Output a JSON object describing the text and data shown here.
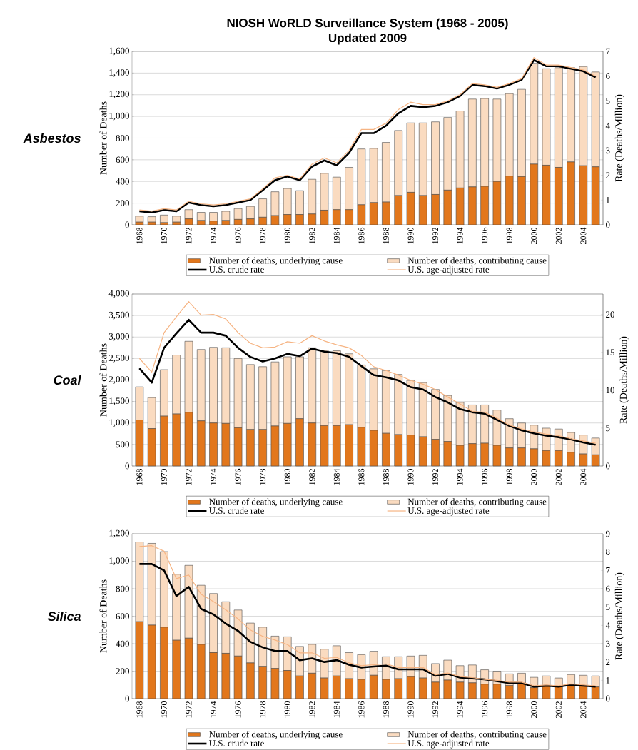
{
  "chart_data": [
    {
      "type": "bar",
      "stacked": true,
      "title": "NIOSH WoRLD Surveillance System (1968 - 2005)",
      "subtitle": "Updated 2009",
      "annotations": [
        "Asbestos"
      ],
      "ylabel": "Number of Deaths",
      "y2label": "Rate (Deaths/Million)",
      "grid": "y",
      "legend": "bottom",
      "categories": [
        "1968",
        null,
        "1970",
        null,
        "1972",
        null,
        "1974",
        null,
        "1976",
        null,
        "1978",
        null,
        "1980",
        null,
        "1982",
        null,
        "1984",
        null,
        "1986",
        null,
        "1988",
        null,
        "1990",
        null,
        "1992",
        null,
        "1994",
        null,
        "1996",
        null,
        "1998",
        null,
        "2000",
        null,
        "2002",
        null,
        "2004",
        null
      ],
      "ylim": [
        0,
        1600
      ],
      "yticks": [
        0,
        200,
        400,
        600,
        800,
        {
          "value": 1000,
          "label": "1,000"
        },
        {
          "value": 1200,
          "label": "1,200"
        },
        {
          "value": 1400,
          "label": "1,400"
        },
        {
          "value": 1600,
          "label": "1,600"
        }
      ],
      "y2lim": [
        0,
        7
      ],
      "y2ticks": [
        0,
        1,
        2,
        3,
        4,
        5,
        6,
        7
      ],
      "series": [
        {
          "name": "Number of deaths, underlying cause",
          "color": "#e2771c",
          "values": [
            25,
            25,
            20,
            25,
            55,
            40,
            35,
            40,
            50,
            55,
            70,
            85,
            95,
            95,
            100,
            135,
            140,
            140,
            185,
            205,
            210,
            270,
            300,
            270,
            280,
            320,
            340,
            350,
            355,
            400,
            450,
            445,
            560,
            550,
            530,
            580,
            545,
            535
          ]
        },
        {
          "name": "Number of deaths, contributing cause",
          "color": "#fadbc0",
          "values": [
            55,
            50,
            70,
            55,
            85,
            75,
            80,
            85,
            100,
            115,
            170,
            220,
            240,
            220,
            320,
            340,
            300,
            390,
            515,
            500,
            550,
            600,
            640,
            670,
            670,
            670,
            710,
            810,
            810,
            760,
            760,
            805,
            930,
            890,
            920,
            870,
            915,
            875
          ]
        },
        {
          "name": "U.S. crude rate",
          "type": "line",
          "axis": "y2",
          "color": "#000000",
          "values": [
            0.55,
            0.5,
            0.6,
            0.55,
            0.9,
            0.8,
            0.75,
            0.8,
            0.9,
            1.0,
            1.4,
            1.8,
            1.95,
            1.8,
            2.35,
            2.6,
            2.4,
            2.9,
            3.7,
            3.7,
            4.0,
            4.5,
            4.8,
            4.75,
            4.8,
            4.95,
            5.2,
            5.65,
            5.6,
            5.5,
            5.65,
            5.85,
            6.65,
            6.4,
            6.4,
            6.3,
            6.2,
            5.95
          ]
        },
        {
          "name": "U.S. age-adjusted rate",
          "type": "line",
          "axis": "y2",
          "color": "#f6b483",
          "values": [
            0.6,
            0.55,
            0.65,
            0.6,
            0.95,
            0.85,
            0.8,
            0.85,
            0.95,
            1.05,
            1.45,
            1.9,
            2.0,
            1.85,
            2.45,
            2.7,
            2.5,
            3.0,
            3.85,
            3.85,
            4.1,
            4.65,
            4.95,
            4.85,
            4.85,
            5.0,
            5.25,
            5.7,
            5.65,
            5.55,
            5.7,
            5.9,
            6.75,
            6.45,
            6.45,
            6.35,
            6.25,
            6.0
          ]
        }
      ]
    },
    {
      "type": "bar",
      "stacked": true,
      "annotations": [
        "Coal"
      ],
      "ylabel": "Number of Deaths",
      "y2label": "Rate (Deaths/Million)",
      "grid": "y",
      "legend": "bottom",
      "categories": [
        "1968",
        null,
        "1970",
        null,
        "1972",
        null,
        "1974",
        null,
        "1976",
        null,
        "1978",
        null,
        "1980",
        null,
        "1982",
        null,
        "1984",
        null,
        "1986",
        null,
        "1988",
        null,
        "1990",
        null,
        "1992",
        null,
        "1994",
        null,
        "1996",
        null,
        "1998",
        null,
        "2000",
        null,
        "2002",
        null,
        "2004",
        null
      ],
      "ylim": [
        0,
        4000
      ],
      "yticks": [
        0,
        500,
        {
          "value": 1000,
          "label": "1,000"
        },
        {
          "value": 1500,
          "label": "1,500"
        },
        {
          "value": 2000,
          "label": "2,000"
        },
        {
          "value": 2500,
          "label": "2,500"
        },
        {
          "value": 3000,
          "label": "3,000"
        },
        {
          "value": 3500,
          "label": "3,500"
        },
        {
          "value": 4000,
          "label": "4,000"
        }
      ],
      "y2lim": [
        0,
        22.7
      ],
      "y2ticks": [
        0,
        5,
        10,
        15,
        20
      ],
      "series": [
        {
          "name": "Number of deaths, underlying cause",
          "color": "#e2771c",
          "values": [
            1070,
            870,
            1160,
            1210,
            1250,
            1050,
            1000,
            990,
            890,
            850,
            850,
            930,
            990,
            1100,
            1000,
            940,
            940,
            960,
            900,
            830,
            760,
            730,
            720,
            680,
            620,
            570,
            480,
            520,
            530,
            480,
            420,
            420,
            400,
            360,
            360,
            320,
            280,
            260
          ]
        },
        {
          "name": "Number of deaths, contributing cause",
          "color": "#fadbc0",
          "values": [
            770,
            720,
            1080,
            1370,
            1650,
            1660,
            1760,
            1760,
            1610,
            1510,
            1460,
            1490,
            1550,
            1440,
            1750,
            1750,
            1740,
            1650,
            1450,
            1430,
            1460,
            1400,
            1270,
            1260,
            1160,
            1070,
            1000,
            900,
            890,
            820,
            680,
            580,
            550,
            520,
            500,
            460,
            440,
            390
          ]
        },
        {
          "name": "U.S. crude rate",
          "type": "line",
          "axis": "y2",
          "color": "#000000",
          "values": [
            12.9,
            11.0,
            15.6,
            17.5,
            19.3,
            17.6,
            17.6,
            17.2,
            15.6,
            14.4,
            13.8,
            14.2,
            14.8,
            14.5,
            15.5,
            15.1,
            14.9,
            14.4,
            13.2,
            12.0,
            11.7,
            11.3,
            10.4,
            10.1,
            9.1,
            8.4,
            7.5,
            7.1,
            6.9,
            6.1,
            5.3,
            4.7,
            4.3,
            4.0,
            3.8,
            3.5,
            3.1,
            2.8
          ]
        },
        {
          "name": "U.S. age-adjusted rate",
          "type": "line",
          "axis": "y2",
          "color": "#f6b483",
          "values": [
            14.2,
            12.4,
            17.6,
            19.7,
            21.7,
            19.9,
            20.0,
            19.4,
            17.6,
            16.2,
            15.6,
            15.7,
            16.4,
            16.2,
            17.2,
            16.5,
            16.0,
            15.6,
            14.6,
            13.1,
            12.6,
            12.0,
            11.3,
            10.8,
            10.1,
            9.1,
            8.2,
            7.2,
            7.1,
            6.3,
            5.4,
            4.9,
            4.5,
            4.2,
            4.0,
            3.6,
            3.3,
            3.0
          ]
        }
      ]
    },
    {
      "type": "bar",
      "stacked": true,
      "annotations": [
        "Silica"
      ],
      "ylabel": "Number of Deaths",
      "y2label": "Rate (Deaths/Million)",
      "grid": "y",
      "legend": "bottom",
      "categories": [
        "1968",
        null,
        "1970",
        null,
        "1972",
        null,
        "1974",
        null,
        "1976",
        null,
        "1978",
        null,
        "1980",
        null,
        "1982",
        null,
        "1984",
        null,
        "1986",
        null,
        "1988",
        null,
        "1990",
        null,
        "1992",
        null,
        "1994",
        null,
        "1996",
        null,
        "1998",
        null,
        "2000",
        null,
        "2002",
        null,
        "2004",
        null
      ],
      "ylim": [
        0,
        1200
      ],
      "yticks": [
        0,
        200,
        400,
        600,
        800,
        {
          "value": 1000,
          "label": "1,000"
        },
        {
          "value": 1200,
          "label": "1,200"
        }
      ],
      "y2lim": [
        0,
        9
      ],
      "y2ticks": [
        0,
        1,
        2,
        3,
        4,
        5,
        6,
        7,
        8,
        9
      ],
      "series": [
        {
          "name": "Number of deaths, underlying cause",
          "color": "#e2771c",
          "values": [
            560,
            535,
            520,
            425,
            440,
            395,
            335,
            330,
            310,
            260,
            235,
            220,
            205,
            165,
            185,
            150,
            165,
            145,
            140,
            170,
            140,
            145,
            160,
            150,
            120,
            135,
            120,
            115,
            105,
            105,
            95,
            110,
            80,
            95,
            90,
            100,
            90,
            85
          ]
        },
        {
          "name": "Number of deaths, contributing cause",
          "color": "#fadbc0",
          "values": [
            580,
            595,
            550,
            480,
            530,
            430,
            430,
            375,
            335,
            290,
            285,
            235,
            245,
            215,
            210,
            210,
            220,
            190,
            180,
            175,
            165,
            160,
            150,
            165,
            135,
            145,
            120,
            130,
            105,
            95,
            85,
            75,
            75,
            70,
            60,
            75,
            80,
            80
          ]
        },
        {
          "name": "U.S. crude rate",
          "type": "line",
          "axis": "y2",
          "color": "#000000",
          "values": [
            7.35,
            7.35,
            7.0,
            5.6,
            6.1,
            4.9,
            4.6,
            4.1,
            3.7,
            3.1,
            2.8,
            2.6,
            2.6,
            2.1,
            2.2,
            2.0,
            2.1,
            1.85,
            1.7,
            1.75,
            1.8,
            1.6,
            1.6,
            1.6,
            1.25,
            1.35,
            1.15,
            1.1,
            1.05,
            0.95,
            0.85,
            0.85,
            0.65,
            0.7,
            0.65,
            0.75,
            0.7,
            0.65
          ]
        },
        {
          "name": "U.S. age-adjusted rate",
          "type": "line",
          "axis": "y2",
          "color": "#f6b483",
          "values": [
            8.3,
            8.35,
            8.05,
            6.55,
            6.75,
            5.7,
            5.3,
            4.85,
            4.35,
            3.75,
            3.4,
            3.2,
            2.95,
            2.5,
            2.5,
            2.2,
            2.25,
            1.95,
            1.8,
            1.85,
            1.9,
            1.7,
            1.7,
            1.7,
            1.3,
            1.4,
            1.2,
            1.15,
            1.05,
            1.0,
            0.9,
            0.9,
            0.7,
            0.75,
            0.7,
            0.8,
            0.75,
            0.7
          ]
        }
      ]
    }
  ]
}
